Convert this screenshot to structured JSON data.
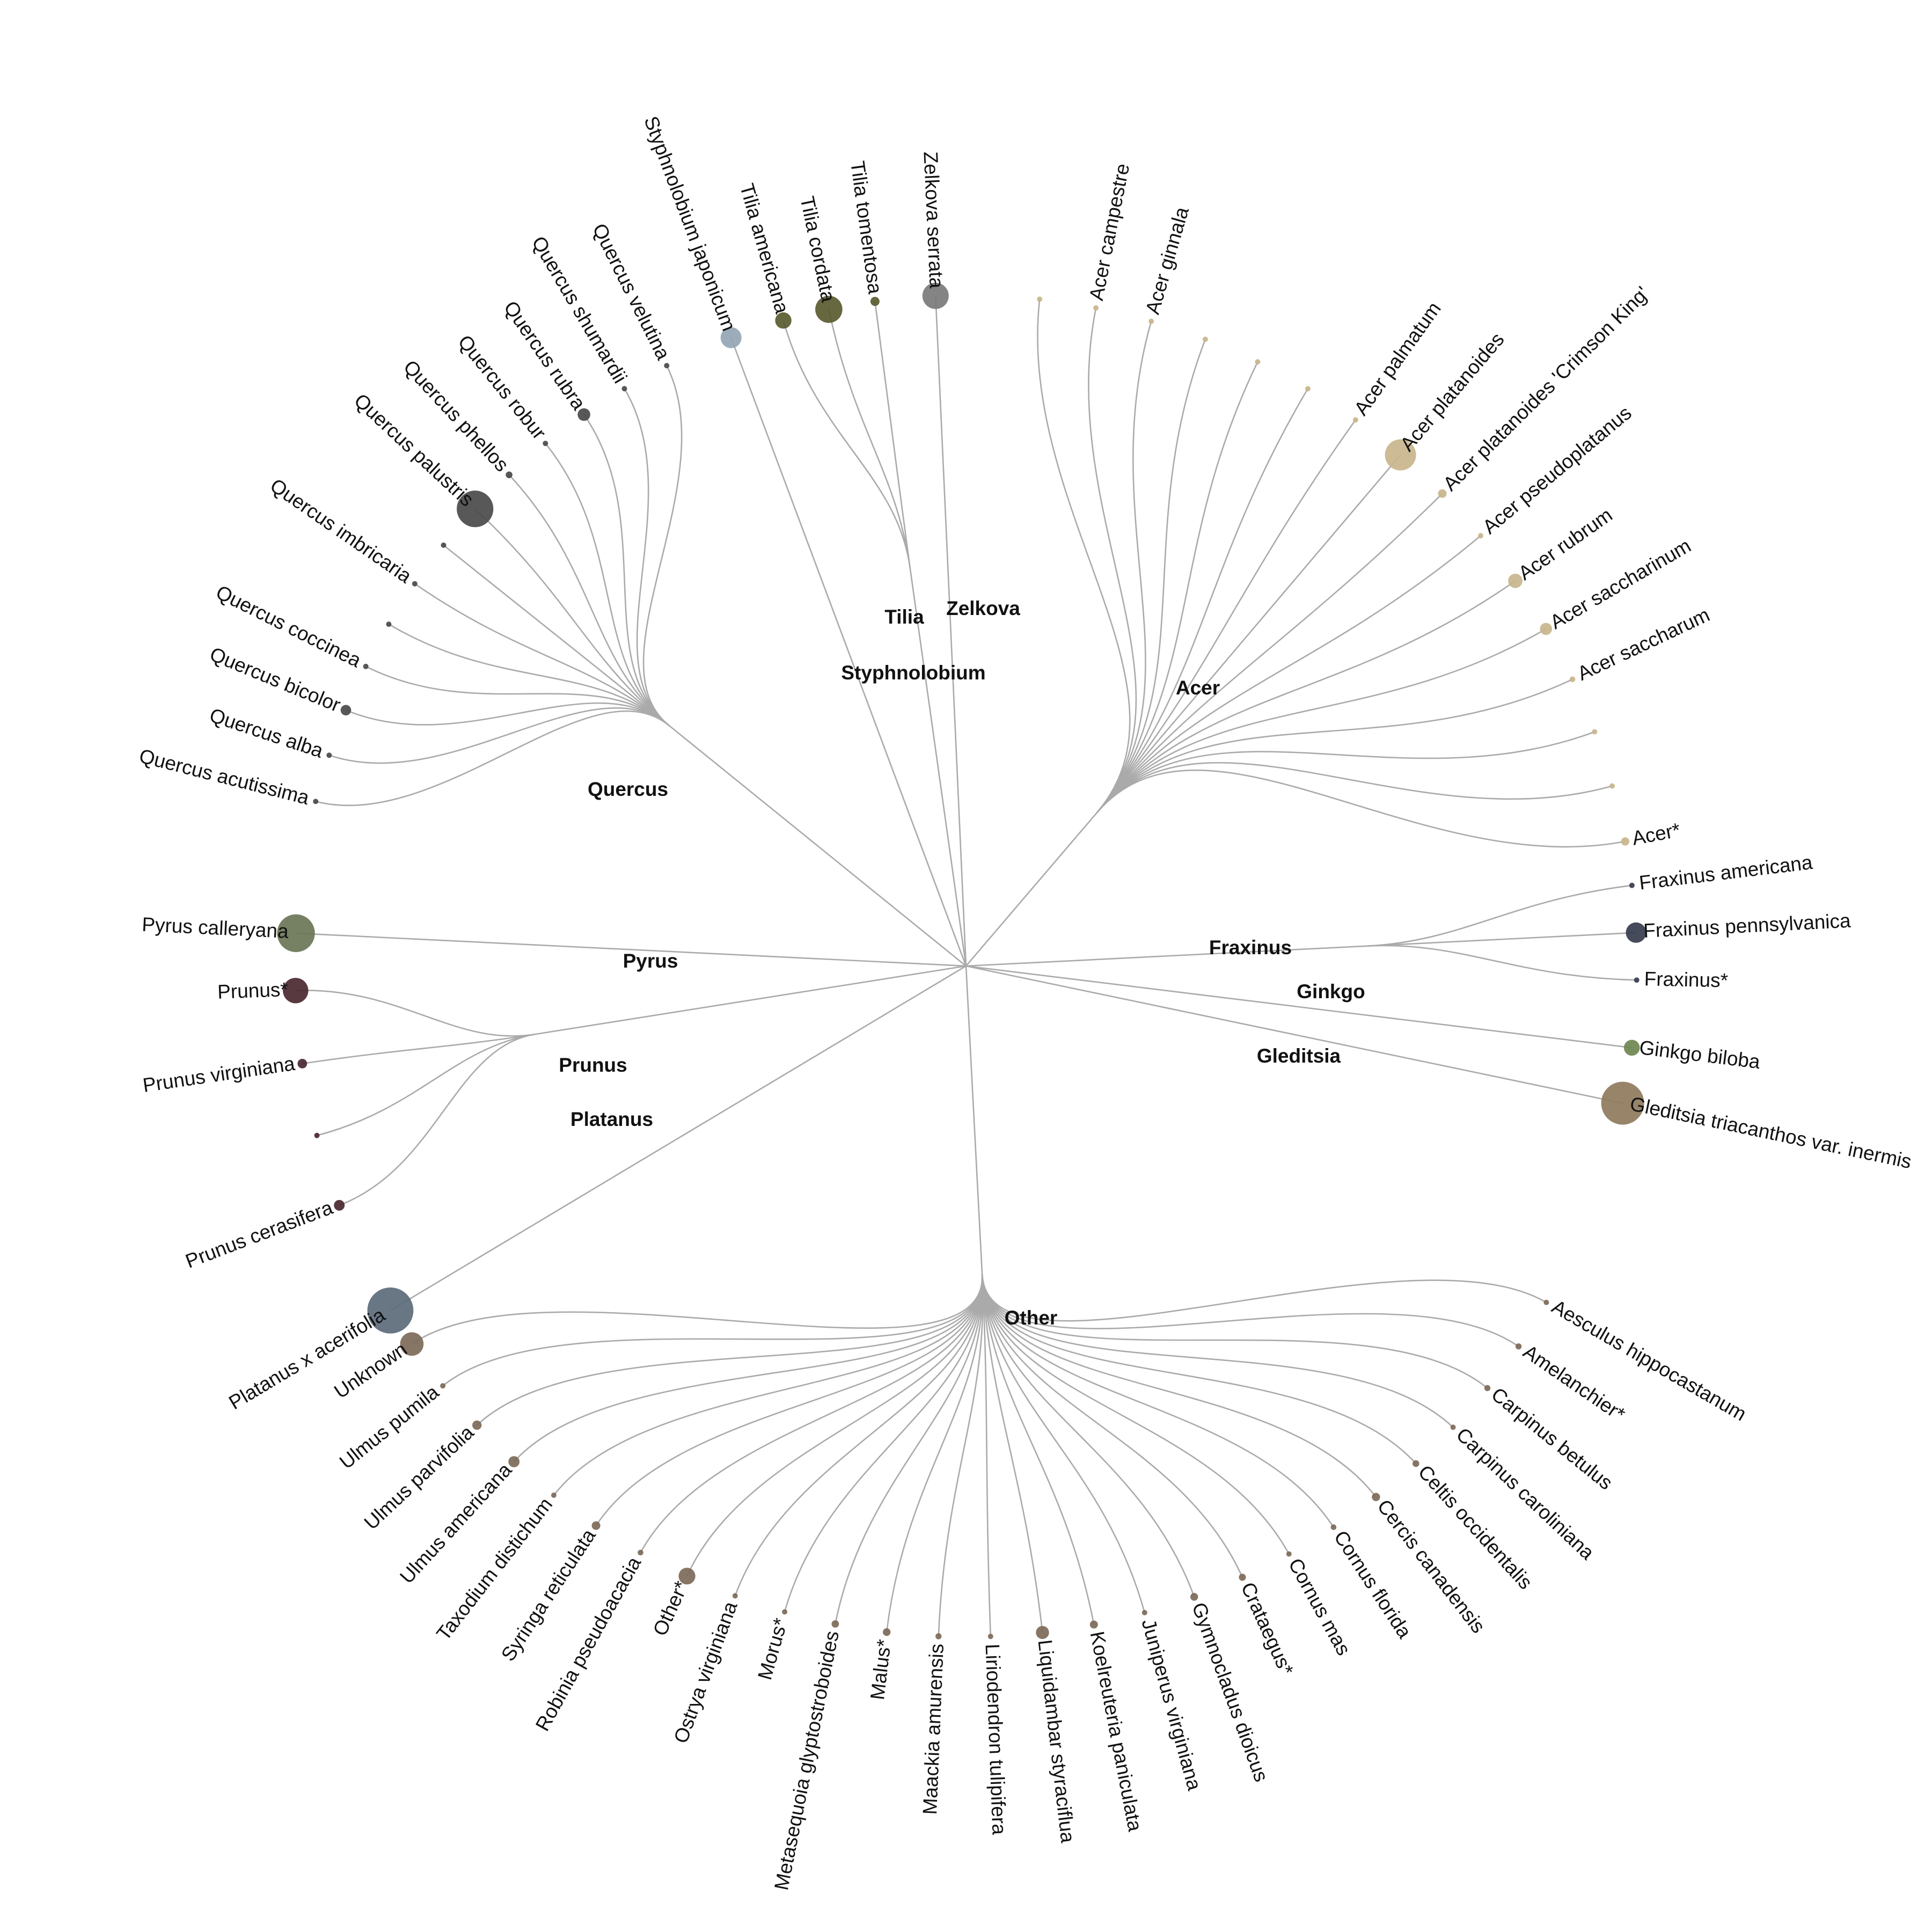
{
  "chart_data": {
    "type": "radial-tree",
    "colors": {
      "Acer": "#c8b58c",
      "Fraxinus": "#353c4d",
      "Ginkgo": "#6f8650",
      "Gleditsia": "#8e7a5c",
      "Other": "#7d6a58",
      "Platanus": "#5c6a7a",
      "Prunus": "#4a2830",
      "Pyrus": "#6a7656",
      "Quercus": "#4a4a4a",
      "Styphnolobium": "#95a5b5",
      "Tilia": "#5a5a30",
      "Zelkova": "#7a7a7a",
      "link": "#aaaaaa"
    },
    "groups": [
      {
        "name": "Gleditsia",
        "leaves": [
          {
            "label": "Gleditsia triacanthos var. inermis",
            "size": 40000
          }
        ]
      },
      {
        "name": "Ginkgo",
        "leaves": [
          {
            "label": "Ginkgo biloba",
            "size": 5500
          }
        ]
      },
      {
        "name": "Fraxinus",
        "leaves": [
          {
            "label": "Fraxinus*",
            "size": 500
          },
          {
            "label": "Fraxinus pennsylvanica",
            "size": 9000
          },
          {
            "label": "Fraxinus americana",
            "size": 250
          }
        ]
      },
      {
        "name": "Acer",
        "leaves": [
          {
            "label": "Acer*",
            "size": 1500
          },
          {
            "label": "",
            "size": 0
          },
          {
            "label": "",
            "size": 30
          },
          {
            "label": "Acer saccharum",
            "size": 700
          },
          {
            "label": "Acer saccharinum",
            "size": 3200
          },
          {
            "label": "Acer rubrum",
            "size": 4500
          },
          {
            "label": "Acer pseudoplatanus",
            "size": 500
          },
          {
            "label": "Acer platanoides 'Crimson King'",
            "size": 1600
          },
          {
            "label": "Acer platanoides",
            "size": 21000
          },
          {
            "label": "Acer palmatum",
            "size": 200
          },
          {
            "label": "",
            "size": 20
          },
          {
            "label": "",
            "size": 10
          },
          {
            "label": "",
            "size": 40
          },
          {
            "label": "Acer ginnala",
            "size": 500
          },
          {
            "label": "Acer campestre",
            "size": 500
          },
          {
            "label": "",
            "size": 10
          }
        ]
      },
      {
        "name": "Zelkova",
        "leaves": [
          {
            "label": "Zelkova serrata",
            "size": 15000
          }
        ]
      },
      {
        "name": "Tilia",
        "leaves": [
          {
            "label": "Tilia tomentosa",
            "size": 1800
          },
          {
            "label": "Tilia cordata",
            "size": 16000
          },
          {
            "label": "Tilia americana",
            "size": 5800
          }
        ]
      },
      {
        "name": "Styphnolobium",
        "leaves": [
          {
            "label": "Styphnolobium japonicum",
            "size": 9500
          }
        ]
      },
      {
        "name": "Quercus",
        "leaves": [
          {
            "label": "Quercus velutina",
            "size": 300
          },
          {
            "label": "Quercus shumardii",
            "size": 400
          },
          {
            "label": "Quercus rubra",
            "size": 3500
          },
          {
            "label": "Quercus robur",
            "size": 450
          },
          {
            "label": "Quercus phellos",
            "size": 1000
          },
          {
            "label": "Quercus palustris",
            "size": 29000
          },
          {
            "label": "",
            "size": 100
          },
          {
            "label": "Quercus imbricaria",
            "size": 200
          },
          {
            "label": "",
            "size": 15
          },
          {
            "label": "Quercus coccinea",
            "size": 350
          },
          {
            "label": "Quercus bicolor",
            "size": 2400
          },
          {
            "label": "Quercus alba",
            "size": 450
          },
          {
            "label": "Quercus acutissima",
            "size": 450
          }
        ]
      },
      {
        "name": "Pyrus",
        "leaves": [
          {
            "label": "Pyrus calleryana",
            "size": 31000
          }
        ]
      },
      {
        "name": "Prunus",
        "leaves": [
          {
            "label": "Prunus*",
            "size": 14000
          },
          {
            "label": "Prunus virginiana",
            "size": 2000
          },
          {
            "label": "",
            "size": 130
          },
          {
            "label": "Prunus cerasifera",
            "size": 2500
          }
        ]
      },
      {
        "name": "Platanus",
        "leaves": [
          {
            "label": "Platanus x acerifolia",
            "size": 46000
          }
        ]
      },
      {
        "name": "Other",
        "leaves": [
          {
            "label": "Unknown",
            "size": 12000
          },
          {
            "label": "Ulmus pumila",
            "size": 600
          },
          {
            "label": "Ulmus parvifolia",
            "size": 1900
          },
          {
            "label": "Ulmus americana",
            "size": 2700
          },
          {
            "label": "Taxodium distichum",
            "size": 350
          },
          {
            "label": "Syringa reticulata",
            "size": 1600
          },
          {
            "label": "Robinia pseudoacacia",
            "size": 700
          },
          {
            "label": "Other*",
            "size": 6100
          },
          {
            "label": "Ostrya virginiana",
            "size": 350
          },
          {
            "label": "Morus*",
            "size": 350
          },
          {
            "label": "Metasequoia glyptostroboides",
            "size": 1200
          },
          {
            "label": "Malus*",
            "size": 1300
          },
          {
            "label": "Maackia amurensis",
            "size": 800
          },
          {
            "label": "Liriodendron tulipifera",
            "size": 450
          },
          {
            "label": "Liquidambar styraciflua",
            "size": 3700
          },
          {
            "label": "Koelreuteria paniculata",
            "size": 1400
          },
          {
            "label": "Juniperus virginiana",
            "size": 500
          },
          {
            "label": "Gymnocladus dioicus",
            "size": 1300
          },
          {
            "label": "Crataegus*",
            "size": 1100
          },
          {
            "label": "Cornus mas",
            "size": 600
          },
          {
            "label": "Cornus florida",
            "size": 700
          },
          {
            "label": "Cercis canadensis",
            "size": 1500
          },
          {
            "label": "Celtis occidentalis",
            "size": 1000
          },
          {
            "label": "Carpinus caroliniana",
            "size": 600
          },
          {
            "label": "Carpinus betulus",
            "size": 800
          },
          {
            "label": "Amelanchier*",
            "size": 800
          },
          {
            "label": "Aesculus hippocastanum",
            "size": 350
          }
        ]
      }
    ]
  }
}
